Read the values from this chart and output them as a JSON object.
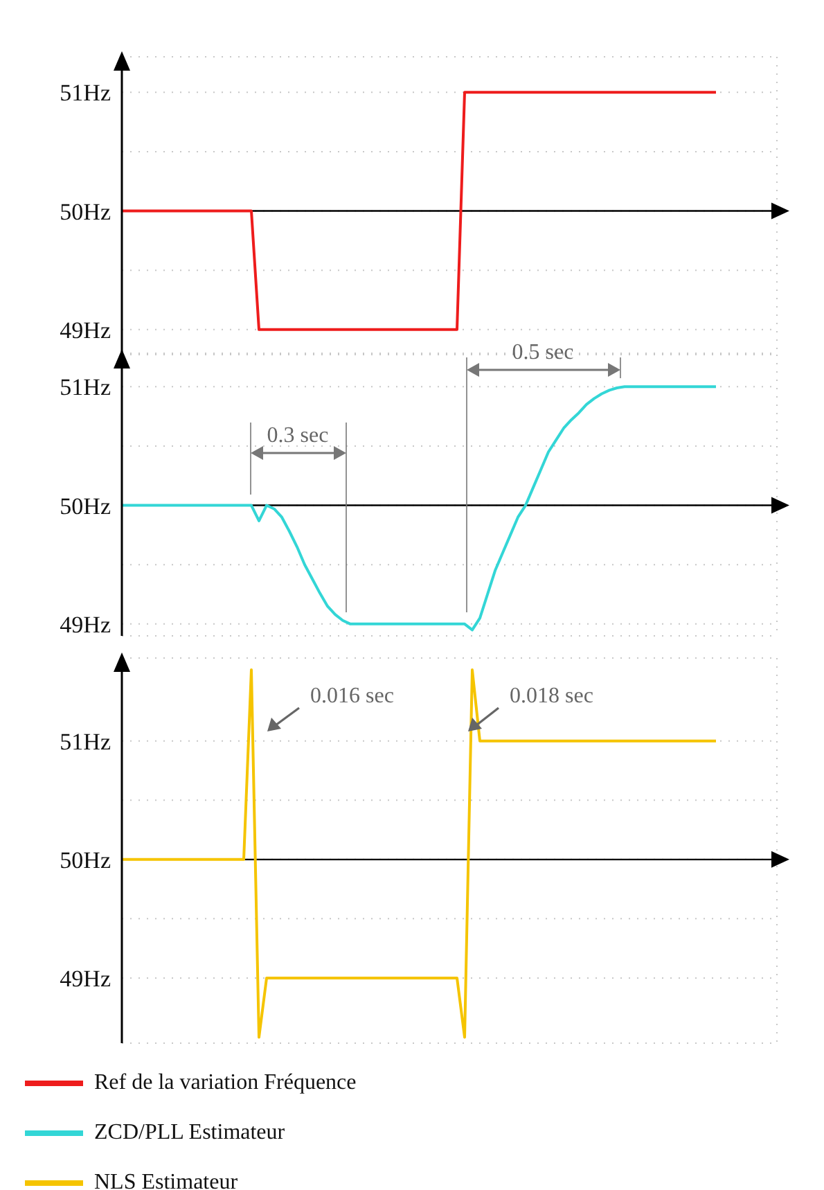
{
  "chart_data": [
    {
      "type": "line",
      "categories": [
        null,
        null,
        null,
        null,
        null,
        null,
        null,
        null,
        null,
        null,
        null,
        null,
        null,
        null,
        null,
        null,
        null,
        null,
        null,
        null,
        null,
        null,
        null,
        null,
        null,
        null,
        null,
        null,
        null,
        null,
        null,
        null,
        null,
        null,
        null,
        null,
        null,
        null,
        null,
        null,
        null,
        null,
        null,
        null,
        null,
        null,
        null,
        null,
        null,
        null,
        null,
        null,
        null,
        null,
        null,
        null,
        null,
        null,
        null,
        null,
        null,
        null,
        null,
        null,
        null,
        null,
        null,
        null,
        null,
        null,
        null,
        null,
        null,
        null,
        null,
        null,
        null,
        null,
        null,
        null,
        null,
        null,
        null,
        null,
        null,
        null,
        null
      ],
      "series": [
        {
          "name": "Ref de la variation Fréquence",
          "color": "#ee1c1c",
          "values": [
            50,
            50,
            50,
            50,
            50,
            50,
            50,
            50,
            50,
            50,
            50,
            50,
            50,
            50,
            50,
            50,
            50,
            50,
            49,
            49,
            49,
            49,
            49,
            49,
            49,
            49,
            49,
            49,
            49,
            49,
            49,
            49,
            49,
            49,
            49,
            49,
            49,
            49,
            49,
            49,
            49,
            49,
            49,
            49,
            49,
            51,
            51,
            51,
            51,
            51,
            51,
            51,
            51,
            51,
            51,
            51,
            51,
            51,
            51,
            51,
            51,
            51,
            51,
            51,
            51,
            51,
            51,
            51,
            51,
            51,
            51,
            51,
            51,
            51,
            51,
            51,
            51,
            51,
            51,
            null,
            null,
            null,
            null,
            null,
            null,
            null,
            null
          ]
        }
      ],
      "ylim": [
        48.8,
        51.3
      ],
      "yticks": [
        {
          "value": 49,
          "label": "49Hz"
        },
        {
          "value": 49.5,
          "label": null
        },
        {
          "value": 50,
          "label": "50Hz"
        },
        {
          "value": 50.5,
          "label": null
        },
        {
          "value": 51,
          "label": "51Hz"
        }
      ],
      "grid": true,
      "legend": "bottom",
      "tick_labels": "y",
      "marker": "none",
      "line_style": "solid",
      "ref_lines": [
        {
          "axis": "y",
          "value": 50,
          "color": "#000000"
        }
      ]
    },
    {
      "type": "line",
      "categories": [
        null,
        null,
        null,
        null,
        null,
        null,
        null,
        null,
        null,
        null,
        null,
        null,
        null,
        null,
        null,
        null,
        null,
        null,
        null,
        null,
        null,
        null,
        null,
        null,
        null,
        null,
        null,
        null,
        null,
        null,
        null,
        null,
        null,
        null,
        null,
        null,
        null,
        null,
        null,
        null,
        null,
        null,
        null,
        null,
        null,
        null,
        null,
        null,
        null,
        null,
        null,
        null,
        null,
        null,
        null,
        null,
        null,
        null,
        null,
        null,
        null,
        null,
        null,
        null,
        null,
        null,
        null,
        null,
        null,
        null,
        null,
        null,
        null,
        null,
        null,
        null,
        null,
        null,
        null,
        null,
        null,
        null,
        null,
        null,
        null,
        null,
        null
      ],
      "series": [
        {
          "name": "ZCD/PLL Estimateur",
          "color": "#33d6d6",
          "values": [
            50,
            50,
            50,
            50,
            50,
            50,
            50,
            50,
            50,
            50,
            50,
            50,
            50,
            50,
            50,
            50,
            50,
            50,
            49.87,
            50,
            49.97,
            49.9,
            49.78,
            49.65,
            49.5,
            49.38,
            49.26,
            49.15,
            49.08,
            49.03,
            49,
            49,
            49,
            49,
            49,
            49,
            49,
            49,
            49,
            49,
            49,
            49,
            49,
            49,
            49,
            49,
            48.95,
            49.05,
            49.25,
            49.45,
            49.6,
            49.75,
            49.9,
            50,
            50.15,
            50.3,
            50.45,
            50.55,
            50.65,
            50.72,
            50.78,
            50.85,
            50.9,
            50.94,
            50.97,
            50.99,
            51,
            51,
            51,
            51,
            51,
            51,
            51,
            51,
            51,
            51,
            51,
            51,
            51,
            null,
            null,
            null,
            null,
            null,
            null,
            null,
            null
          ]
        }
      ],
      "ylim": [
        48.9,
        51.27
      ],
      "yticks": [
        {
          "value": 49,
          "label": "49Hz"
        },
        {
          "value": 49.5,
          "label": null
        },
        {
          "value": 50,
          "label": "50Hz"
        },
        {
          "value": 50.5,
          "label": null
        },
        {
          "value": 51,
          "label": "51Hz"
        }
      ],
      "grid": true,
      "legend": "bottom",
      "tick_labels": "y",
      "marker": "none",
      "line_style": "solid",
      "ref_lines": [
        {
          "axis": "y",
          "value": 50,
          "color": "#000000"
        }
      ],
      "annotations": [
        "0.3 sec",
        "0.5 sec"
      ]
    },
    {
      "type": "line",
      "categories": [
        null,
        null,
        null,
        null,
        null,
        null,
        null,
        null,
        null,
        null,
        null,
        null,
        null,
        null,
        null,
        null,
        null,
        null,
        null,
        null,
        null,
        null,
        null,
        null,
        null,
        null,
        null,
        null,
        null,
        null,
        null,
        null,
        null,
        null,
        null,
        null,
        null,
        null,
        null,
        null,
        null,
        null,
        null,
        null,
        null,
        null,
        null,
        null,
        null,
        null,
        null,
        null,
        null,
        null,
        null,
        null,
        null,
        null,
        null,
        null,
        null,
        null,
        null,
        null,
        null,
        null,
        null,
        null,
        null,
        null,
        null,
        null,
        null,
        null,
        null,
        null,
        null,
        null,
        null,
        null,
        null,
        null,
        null,
        null,
        null,
        null,
        null
      ],
      "series": [
        {
          "name": "NLS Estimateur",
          "color": "#f5c400",
          "values": [
            50,
            50,
            50,
            50,
            50,
            50,
            50,
            50,
            50,
            50,
            50,
            50,
            50,
            50,
            50,
            50,
            50,
            51.6,
            48.5,
            49,
            49,
            49,
            49,
            49,
            49,
            49,
            49,
            49,
            49,
            49,
            49,
            49,
            49,
            49,
            49,
            49,
            49,
            49,
            49,
            49,
            49,
            49,
            49,
            49,
            49,
            48.5,
            51.6,
            51,
            51,
            51,
            51,
            51,
            51,
            51,
            51,
            51,
            51,
            51,
            51,
            51,
            51,
            51,
            51,
            51,
            51,
            51,
            51,
            51,
            51,
            51,
            51,
            51,
            51,
            51,
            51,
            51,
            51,
            51,
            51,
            null,
            null,
            null,
            null,
            null,
            null,
            null,
            null
          ]
        }
      ],
      "ylim": [
        48.45,
        51.7
      ],
      "yticks": [
        {
          "value": 49,
          "label": "49Hz"
        },
        {
          "value": 49.5,
          "label": null
        },
        {
          "value": 50,
          "label": "50Hz"
        },
        {
          "value": 50.5,
          "label": null
        },
        {
          "value": 51,
          "label": "51Hz"
        }
      ],
      "grid": true,
      "legend": "bottom",
      "tick_labels": "y",
      "marker": "none",
      "line_style": "solid",
      "ref_lines": [
        {
          "axis": "y",
          "value": 50,
          "color": "#000000"
        }
      ],
      "annotations": [
        "0.016 sec",
        "0.018 sec"
      ]
    }
  ]
}
